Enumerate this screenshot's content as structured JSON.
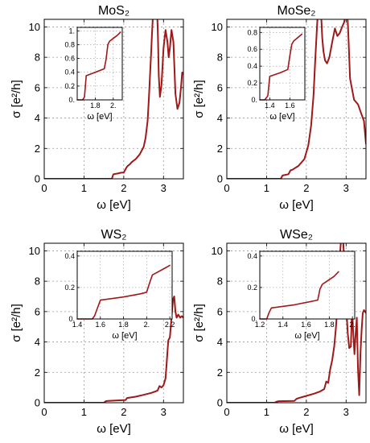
{
  "figure": {
    "line_color": "#a01818"
  },
  "chart_data": [
    {
      "type": "line",
      "title": "MoS₂",
      "xlabel": "ω [eV]",
      "ylabel": "σ [e²/h]",
      "xlim": [
        0,
        3.5
      ],
      "ylim": [
        0,
        10.5
      ],
      "xticks": [
        "0",
        "1",
        "2",
        "3"
      ],
      "yticks": [
        "0",
        "2",
        "4",
        "6",
        "8",
        "10"
      ],
      "grid": true,
      "series": [
        {
          "x": [
            0,
            1.4,
            1.7,
            1.74,
            1.85,
            1.92,
            2.0,
            2.07,
            2.1,
            2.15,
            2.2,
            2.3,
            2.4,
            2.5,
            2.55,
            2.6,
            2.63,
            2.66,
            2.69,
            2.71,
            2.74,
            2.77,
            2.8,
            2.84,
            2.86,
            2.88,
            2.91,
            2.95,
            3.0,
            3.05,
            3.1,
            3.13,
            3.16,
            3.2,
            3.25,
            3.3,
            3.35,
            3.4,
            3.44,
            3.47,
            3.5
          ],
          "y": [
            0,
            0,
            0,
            0.3,
            0.35,
            0.4,
            0.42,
            0.75,
            0.85,
            0.95,
            1.1,
            1.3,
            1.6,
            2.1,
            2.7,
            3.8,
            5.2,
            6.8,
            8.4,
            9.6,
            11,
            11,
            11,
            11,
            9.3,
            6.8,
            5.4,
            6.2,
            8.6,
            9.8,
            9.0,
            8.0,
            8.6,
            9.8,
            9.0,
            5.6,
            4.6,
            5.0,
            6.0,
            7.0,
            6.9
          ]
        }
      ],
      "inset": {
        "xlabel": "ω [eV]",
        "xlim": [
          1.6,
          2.1
        ],
        "ylim": [
          0,
          1.05
        ],
        "xticks": [
          "1.8",
          "2."
        ],
        "yticks": [
          "0.",
          "0.2",
          "0.4",
          "0.6",
          "0.8",
          "1."
        ],
        "series": [
          {
            "x": [
              1.6,
              1.66,
              1.68,
              1.7,
              1.8,
              1.9,
              1.92,
              1.94,
              1.96,
              2.0,
              2.04,
              2.08
            ],
            "y": [
              0,
              0,
              0.04,
              0.35,
              0.4,
              0.45,
              0.58,
              0.8,
              0.85,
              0.89,
              0.93,
              0.98
            ]
          }
        ]
      }
    },
    {
      "type": "line",
      "title": "MoSe₂",
      "xlabel": "ω [eV]",
      "ylabel": "σ [e²/h]",
      "xlim": [
        0,
        3.5
      ],
      "ylim": [
        0,
        10.5
      ],
      "xticks": [
        "0",
        "1",
        "2",
        "3"
      ],
      "yticks": [
        "0",
        "2",
        "4",
        "6",
        "8",
        "10"
      ],
      "grid": true,
      "series": [
        {
          "x": [
            0,
            1.2,
            1.36,
            1.4,
            1.55,
            1.6,
            1.65,
            1.8,
            1.95,
            2.05,
            2.12,
            2.18,
            2.22,
            2.26,
            2.29,
            2.31,
            2.34,
            2.37,
            2.4,
            2.43,
            2.47,
            2.52,
            2.58,
            2.65,
            2.72,
            2.78,
            2.84,
            2.9,
            2.95,
            3.0,
            3.03,
            3.06,
            3.1,
            3.2,
            3.3,
            3.38,
            3.45,
            3.5
          ],
          "y": [
            0,
            0,
            0,
            0.22,
            0.3,
            0.55,
            0.6,
            0.85,
            1.3,
            2.2,
            3.5,
            5.5,
            7.6,
            9.6,
            11,
            11,
            11,
            11,
            9.3,
            8.4,
            7.8,
            7.6,
            8.0,
            9.0,
            9.9,
            9.4,
            9.6,
            10.0,
            10.3,
            11,
            11,
            9.2,
            6.6,
            5.2,
            4.9,
            4.3,
            3.8,
            2.3
          ]
        }
      ],
      "inset": {
        "xlabel": "ω [eV]",
        "xlim": [
          1.3,
          1.75
        ],
        "ylim": [
          0,
          0.86
        ],
        "xticks": [
          "1.4",
          "1.6"
        ],
        "yticks": [
          "0.",
          "0.2",
          "0.4",
          "0.6",
          "0.8"
        ],
        "series": [
          {
            "x": [
              1.3,
              1.35,
              1.38,
              1.4,
              1.5,
              1.58,
              1.6,
              1.62,
              1.64,
              1.68,
              1.72
            ],
            "y": [
              0,
              0,
              0.05,
              0.28,
              0.32,
              0.36,
              0.52,
              0.66,
              0.7,
              0.74,
              0.78
            ]
          }
        ]
      }
    },
    {
      "type": "line",
      "title": "WS₂",
      "xlabel": "ω [eV]",
      "ylabel": "σ [e²/h]",
      "xlim": [
        0,
        3.5
      ],
      "ylim": [
        0,
        10.5
      ],
      "xticks": [
        "0",
        "1",
        "2",
        "3"
      ],
      "yticks": [
        "0",
        "2",
        "4",
        "6",
        "8",
        "10"
      ],
      "grid": true,
      "series": [
        {
          "x": [
            0,
            1.5,
            1.55,
            1.6,
            2.05,
            2.08,
            2.1,
            2.3,
            2.5,
            2.7,
            2.85,
            2.9,
            2.95,
            3.0,
            3.05,
            3.08,
            3.12,
            3.16,
            3.2,
            3.24,
            3.27,
            3.3,
            3.33,
            3.37,
            3.42,
            3.46,
            3.5
          ],
          "y": [
            0,
            0,
            0.1,
            0.12,
            0.18,
            0.3,
            0.32,
            0.4,
            0.52,
            0.65,
            0.8,
            1.1,
            1.0,
            1.15,
            1.6,
            2.6,
            4.1,
            4.3,
            5.6,
            6.8,
            7.0,
            6.0,
            5.6,
            5.8,
            5.6,
            5.7,
            5.6
          ]
        }
      ],
      "inset": {
        "xlabel": "ω [eV]",
        "xlim": [
          1.4,
          2.22
        ],
        "ylim": [
          0,
          0.43
        ],
        "xticks": [
          "1.4",
          "1.6",
          "1.8",
          "2.",
          "2.2"
        ],
        "yticks": [
          "0.",
          "0.2",
          "0.4"
        ],
        "series": [
          {
            "x": [
              1.4,
              1.53,
              1.55,
              1.6,
              1.8,
              1.95,
              2.0,
              2.03,
              2.05,
              2.1,
              2.15,
              2.2
            ],
            "y": [
              0,
              0,
              0.02,
              0.12,
              0.14,
              0.16,
              0.17,
              0.24,
              0.28,
              0.3,
              0.32,
              0.34
            ]
          }
        ]
      }
    },
    {
      "type": "line",
      "title": "WSe₂",
      "xlabel": "ω [eV]",
      "ylabel": "σ [e²/h]",
      "xlim": [
        0,
        3.5
      ],
      "ylim": [
        0,
        10.5
      ],
      "xticks": [
        "0",
        "1",
        "2",
        "3"
      ],
      "yticks": [
        "0",
        "2",
        "4",
        "6",
        "8",
        "10"
      ],
      "grid": true,
      "series": [
        {
          "x": [
            0,
            1.2,
            1.25,
            1.3,
            1.7,
            1.75,
            1.8,
            2.0,
            2.2,
            2.35,
            2.45,
            2.5,
            2.55,
            2.6,
            2.65,
            2.7,
            2.74,
            2.78,
            2.81,
            2.84,
            2.88,
            2.92,
            2.96,
            3.0,
            3.04,
            3.08,
            3.12,
            3.15,
            3.18,
            3.21,
            3.24,
            3.27,
            3.3,
            3.33,
            3.36,
            3.39,
            3.42,
            3.45,
            3.48,
            3.5
          ],
          "y": [
            0,
            0,
            0.07,
            0.1,
            0.12,
            0.25,
            0.3,
            0.45,
            0.6,
            0.75,
            0.9,
            1.4,
            1.3,
            2.2,
            2.8,
            3.7,
            4.8,
            6.2,
            7.8,
            9.6,
            11,
            11,
            9.0,
            6.5,
            4.6,
            3.6,
            3.7,
            6.3,
            4.5,
            3.2,
            4.5,
            5.6,
            2.2,
            0.5,
            3.2,
            4.8,
            5.9,
            6.1,
            6.0,
            5.9
          ]
        }
      ],
      "inset": {
        "xlabel": "ω [eV]",
        "xlim": [
          1.2,
          2.02
        ],
        "ylim": [
          0,
          0.43
        ],
        "xticks": [
          "1.2",
          "1.4",
          "1.6",
          "1.8",
          "2."
        ],
        "yticks": [
          "0.",
          "0.2",
          "0.4"
        ],
        "series": [
          {
            "x": [
              1.2,
              1.26,
              1.28,
              1.3,
              1.5,
              1.7,
              1.72,
              1.74,
              1.76,
              1.8,
              1.84,
              1.88
            ],
            "y": [
              0,
              0,
              0.04,
              0.07,
              0.09,
              0.12,
              0.19,
              0.22,
              0.23,
              0.25,
              0.27,
              0.3
            ]
          }
        ]
      }
    }
  ]
}
